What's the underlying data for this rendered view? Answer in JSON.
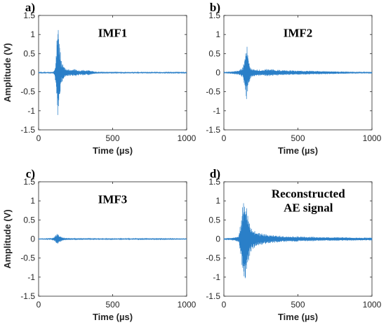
{
  "chart_data": [
    {
      "type": "line",
      "panel_label": "a)",
      "title_lines": [
        "IMF1"
      ],
      "xlabel": "Time (µs)",
      "ylabel": "Amplitude (V)",
      "xlim": [
        0,
        1000
      ],
      "ylim": [
        -1.5,
        1.5
      ],
      "xticks": [
        "0",
        "500",
        "1000"
      ],
      "yticks": [
        "-1.5",
        "-1",
        "-0.5",
        "0",
        "0.5",
        "1",
        "1.5"
      ],
      "line_color": "#2a7fc8",
      "series": [
        {
          "x": [
            0,
            100,
            110,
            120,
            125,
            130,
            135,
            140,
            145,
            150,
            160,
            170,
            180,
            200,
            220,
            250,
            280,
            300,
            320,
            340,
            360,
            380,
            400,
            500,
            600,
            700,
            800,
            900,
            1000
          ],
          "envelope": [
            0.01,
            0.02,
            0.1,
            0.6,
            1.1,
            1.3,
            1.25,
            1.0,
            0.7,
            0.4,
            0.25,
            0.18,
            0.12,
            0.1,
            0.08,
            0.1,
            0.06,
            0.08,
            0.06,
            0.08,
            0.05,
            0.03,
            0.02,
            0.02,
            0.015,
            0.015,
            0.012,
            0.01,
            0.01
          ]
        }
      ]
    },
    {
      "type": "line",
      "panel_label": "b)",
      "title_lines": [
        "IMF2"
      ],
      "xlabel": "Time (µs)",
      "ylabel": "",
      "xlim": [
        0,
        1000
      ],
      "ylim": [
        -1.5,
        1.5
      ],
      "xticks": [
        "0",
        "500",
        "1000"
      ],
      "yticks": [
        "-1.5",
        "-1",
        "-0.5",
        "0",
        "0.5",
        "1",
        "1.5"
      ],
      "line_color": "#2a7fc8",
      "series": [
        {
          "x": [
            0,
            50,
            100,
            130,
            140,
            150,
            155,
            160,
            170,
            180,
            200,
            250,
            300,
            350,
            400,
            500,
            600,
            700,
            800,
            900,
            1000
          ],
          "envelope": [
            0.01,
            0.03,
            0.06,
            0.15,
            0.4,
            0.7,
            0.75,
            0.6,
            0.3,
            0.15,
            0.1,
            0.08,
            0.1,
            0.08,
            0.07,
            0.06,
            0.05,
            0.04,
            0.03,
            0.02,
            0.02
          ]
        }
      ]
    },
    {
      "type": "line",
      "panel_label": "c)",
      "title_lines": [
        "IMF3"
      ],
      "xlabel": "Time (µs)",
      "ylabel": "Amplitude (V)",
      "xlim": [
        0,
        1000
      ],
      "ylim": [
        -1.5,
        1.5
      ],
      "xticks": [
        "0",
        "500",
        "1000"
      ],
      "yticks": [
        "-1.5",
        "-1",
        "-0.5",
        "0",
        "0.5",
        "1",
        "1.5"
      ],
      "line_color": "#2a7fc8",
      "series": [
        {
          "x": [
            0,
            80,
            100,
            120,
            130,
            140,
            160,
            180,
            220,
            300,
            400,
            500,
            600,
            700,
            800,
            900,
            1000
          ],
          "envelope": [
            0.005,
            0.01,
            0.04,
            0.12,
            0.14,
            0.1,
            0.05,
            0.03,
            0.02,
            0.02,
            0.015,
            0.015,
            0.015,
            0.012,
            0.01,
            0.008,
            0.006
          ]
        }
      ]
    },
    {
      "type": "line",
      "panel_label": "d)",
      "title_lines": [
        "Reconstructed",
        "AE signal"
      ],
      "xlabel": "Time (µs)",
      "ylabel": "",
      "xlim": [
        0,
        1000
      ],
      "ylim": [
        -1.5,
        1.5
      ],
      "xticks": [
        "0",
        "500",
        "1000"
      ],
      "yticks": [
        "-1.5",
        "-1",
        "-0.5",
        "0",
        "0.5",
        "1",
        "1.5"
      ],
      "line_color": "#2a7fc8",
      "series": [
        {
          "x": [
            0,
            50,
            100,
            115,
            125,
            135,
            145,
            155,
            170,
            190,
            220,
            260,
            300,
            350,
            400,
            500,
            600,
            700,
            800,
            900,
            1000
          ],
          "envelope": [
            0.02,
            0.03,
            0.08,
            0.5,
            1.0,
            1.3,
            1.2,
            0.9,
            0.5,
            0.3,
            0.2,
            0.15,
            0.12,
            0.1,
            0.08,
            0.07,
            0.06,
            0.05,
            0.05,
            0.04,
            0.04
          ]
        }
      ]
    }
  ]
}
